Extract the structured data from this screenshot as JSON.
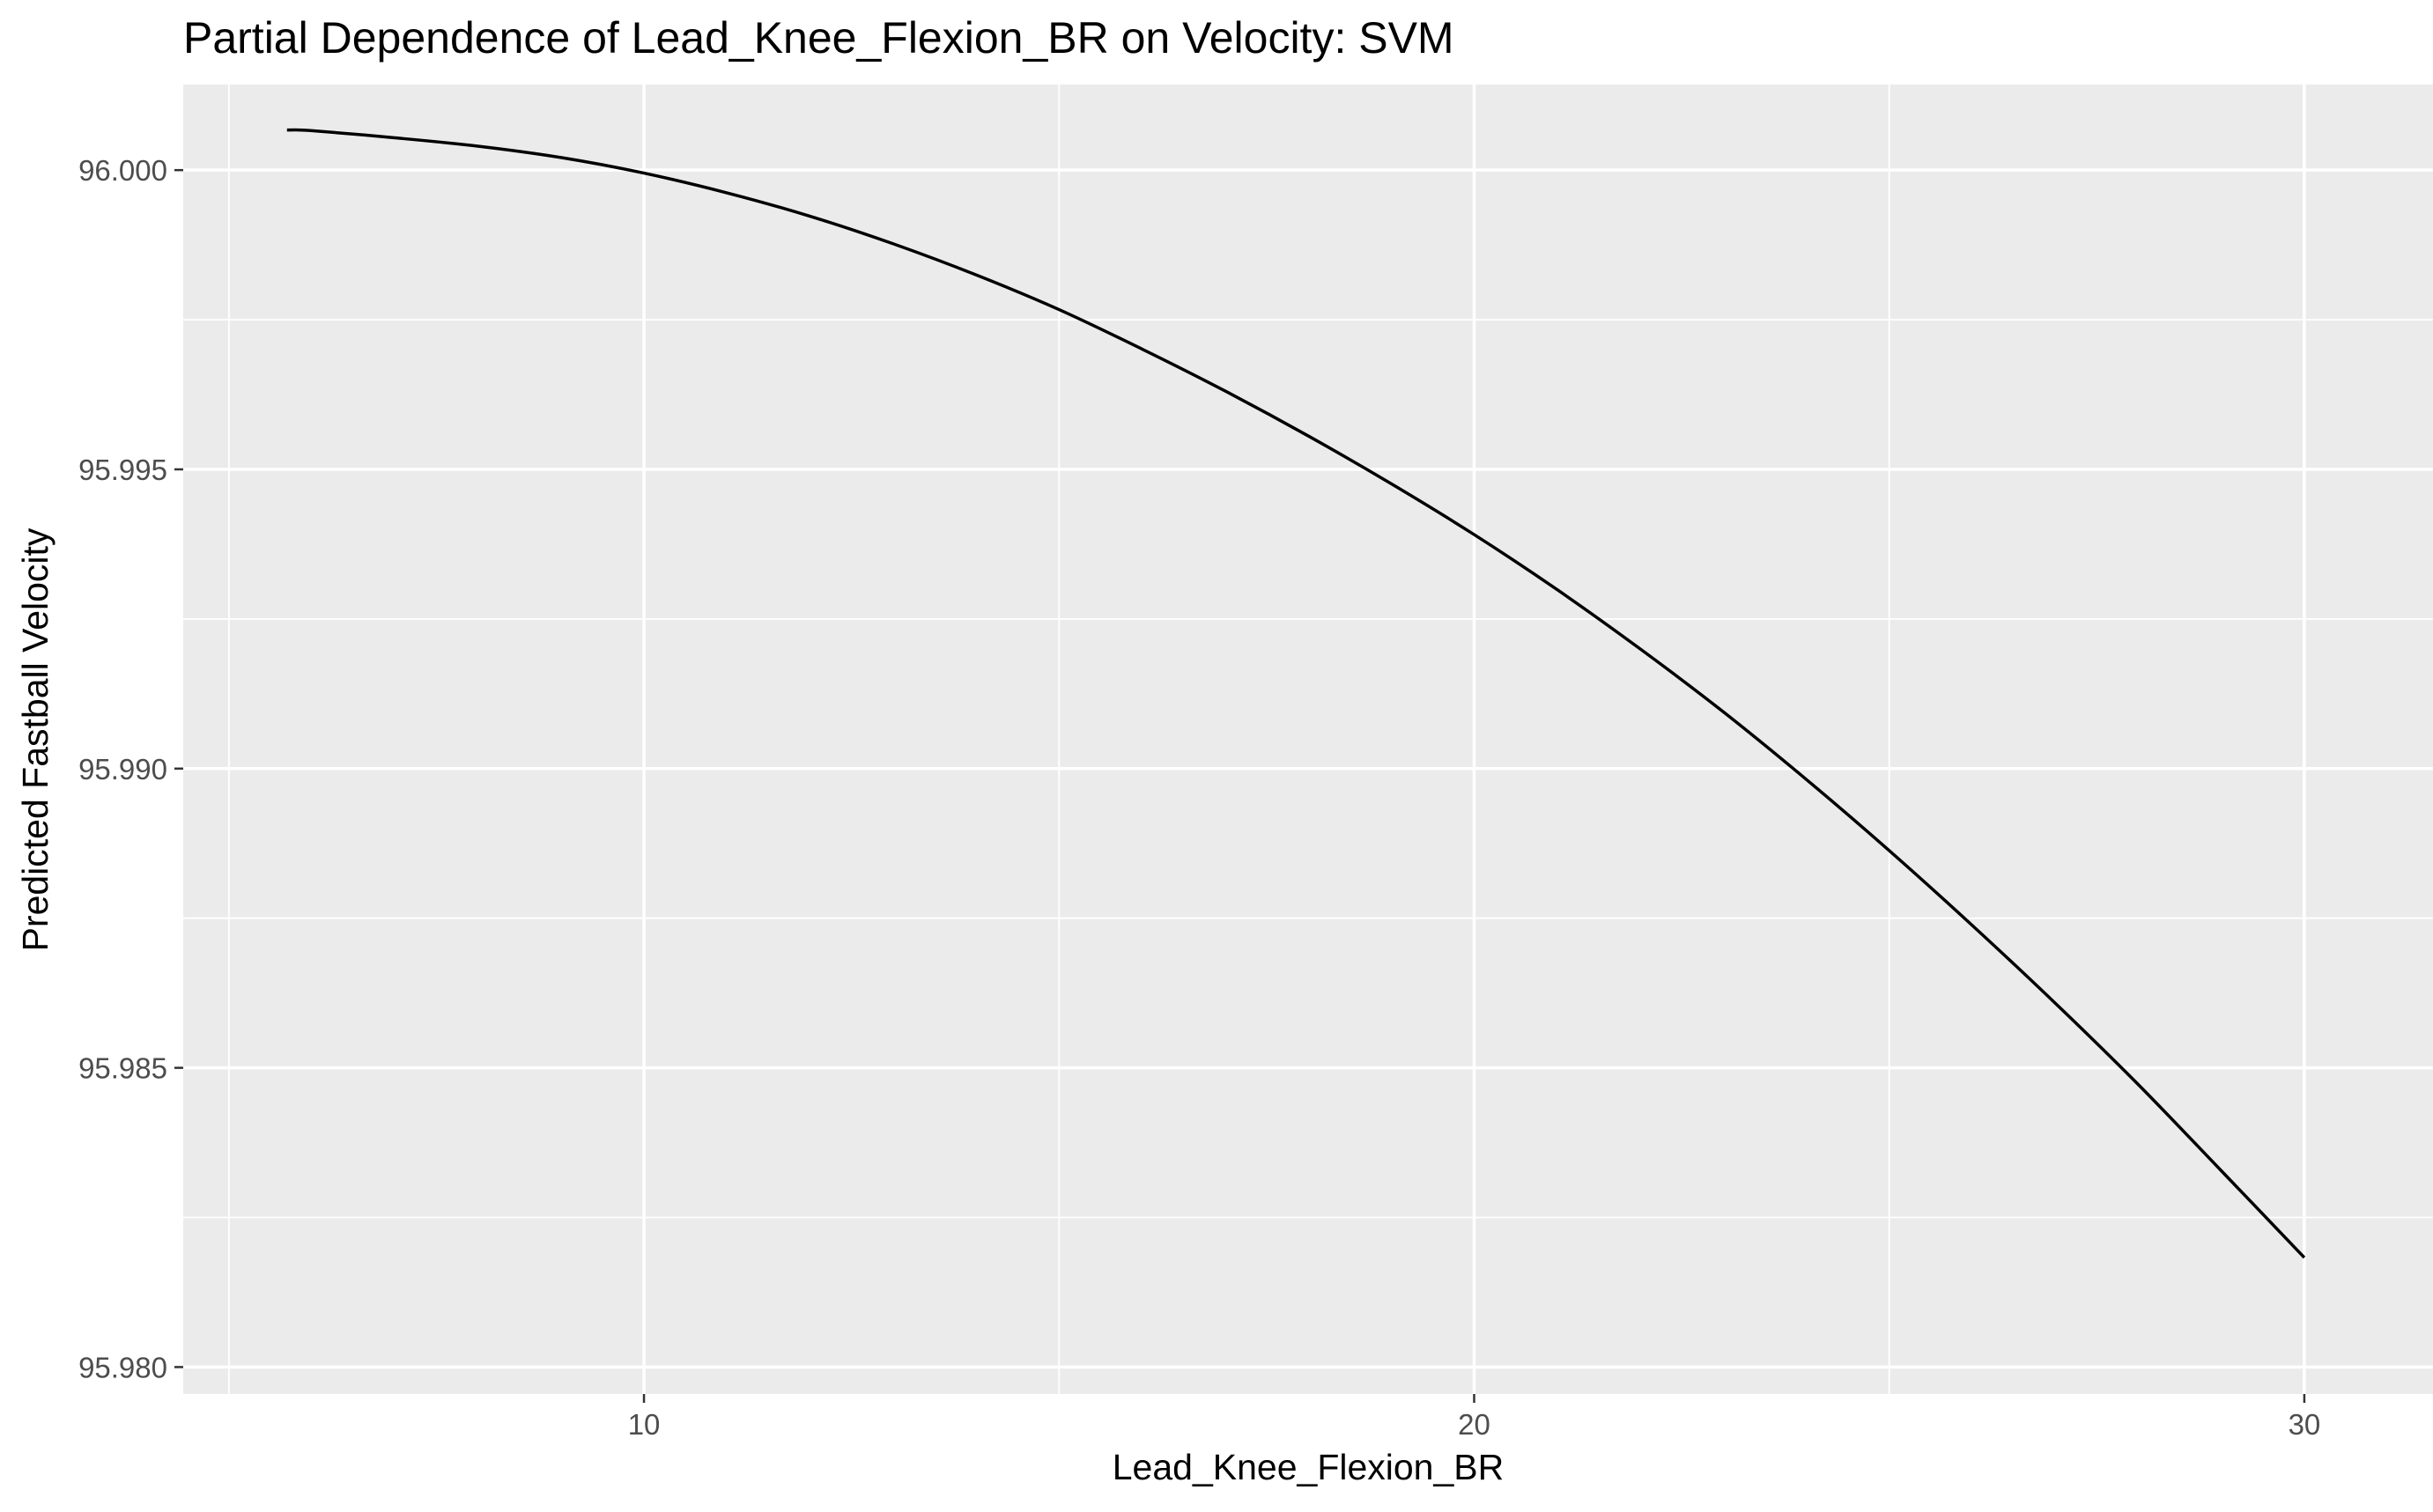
{
  "chart_data": {
    "type": "line",
    "title": "Partial Dependence of Lead_Knee_Flexion_BR on Velocity: SVM",
    "xlabel": "Lead_Knee_Flexion_BR",
    "ylabel": "Predicted Fastball Velocity",
    "xlim": [
      4.45,
      31.55
    ],
    "ylim": [
      95.97955,
      96.00143
    ],
    "x_major_ticks": [
      10,
      20,
      30
    ],
    "x_minor_ticks": [
      5,
      15,
      25
    ],
    "y_major_ticks": [
      95.98,
      95.985,
      95.99,
      95.995,
      96.0
    ],
    "y_minor_ticks": [
      95.9825,
      95.9875,
      95.9925,
      95.9975
    ],
    "x_tick_labels": [
      "10",
      "20",
      "30"
    ],
    "y_tick_labels": [
      "95.980",
      "95.985",
      "95.990",
      "95.995",
      "96.000"
    ],
    "grid": true,
    "legend": "none",
    "series": [
      {
        "x": [
          5.7,
          6.0,
          7.0,
          8.0,
          9.0,
          10.0,
          11.0,
          12.0,
          13.0,
          14.0,
          15.0,
          16.0,
          17.0,
          18.0,
          19.0,
          20.0,
          21.0,
          22.0,
          23.0,
          24.0,
          25.0,
          26.0,
          27.0,
          28.0,
          29.0,
          30.0
        ],
        "y": [
          96.00067,
          96.00066,
          96.00054,
          96.0004,
          96.00021,
          95.99995,
          95.99962,
          95.99923,
          95.99877,
          95.99825,
          95.99767,
          95.99701,
          95.99631,
          95.99556,
          95.99476,
          95.99391,
          95.99299,
          95.992,
          95.99095,
          95.98982,
          95.98863,
          95.98738,
          95.98608,
          95.98472,
          95.98328,
          95.98183
        ],
        "color": "#000000"
      }
    ]
  }
}
